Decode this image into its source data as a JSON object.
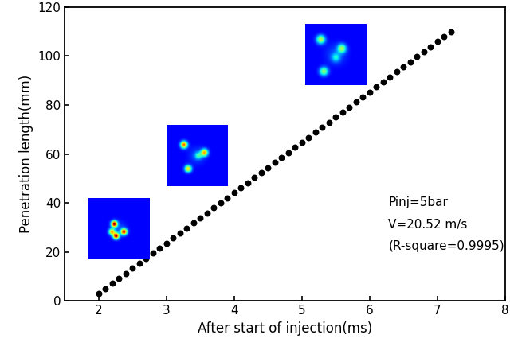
{
  "chart_data": {
    "type": "scatter",
    "xlabel": "After start of injection(ms)",
    "ylabel": "Penetration length(mm)",
    "annotations": [
      "Pinj=5bar",
      "V=20.52 m/s",
      "(R-square=0.9995)"
    ],
    "x": [
      2.0,
      2.1,
      2.2,
      2.3,
      2.4,
      2.5,
      2.6,
      2.7,
      2.8,
      2.9,
      3.0,
      3.1,
      3.2,
      3.3,
      3.4,
      3.5,
      3.6,
      3.7,
      3.8,
      3.9,
      4.0,
      4.1,
      4.2,
      4.3,
      4.4,
      4.5,
      4.6,
      4.7,
      4.8,
      4.9,
      5.0,
      5.1,
      5.2,
      5.3,
      5.4,
      5.5,
      5.6,
      5.7,
      5.8,
      5.9,
      6.0,
      6.1,
      6.2,
      6.3,
      6.4,
      6.5,
      6.6,
      6.7,
      6.8,
      6.9,
      7.0,
      7.1,
      7.2
    ],
    "values": [
      3.0,
      5.1,
      7.1,
      9.2,
      11.2,
      13.3,
      15.3,
      17.4,
      19.5,
      21.5,
      23.6,
      25.6,
      27.7,
      29.8,
      31.8,
      33.9,
      35.9,
      38.0,
      40.0,
      42.1,
      44.2,
      46.2,
      48.3,
      50.3,
      52.4,
      54.5,
      56.5,
      58.6,
      60.6,
      62.7,
      64.7,
      66.8,
      68.9,
      70.9,
      73.0,
      75.0,
      77.1,
      79.1,
      81.2,
      83.3,
      85.3,
      87.4,
      89.4,
      91.5,
      93.6,
      95.6,
      97.7,
      99.7,
      101.8,
      103.8,
      105.9,
      108.0,
      110.0
    ],
    "color": "#000000",
    "marker": "o",
    "xlim": [
      1.5,
      8
    ],
    "xticks": [
      2,
      3,
      4,
      5,
      6,
      7,
      8
    ],
    "ylim": [
      0,
      120
    ],
    "yticks": [
      0,
      20,
      40,
      60,
      80,
      100,
      120
    ],
    "grid": false
  }
}
